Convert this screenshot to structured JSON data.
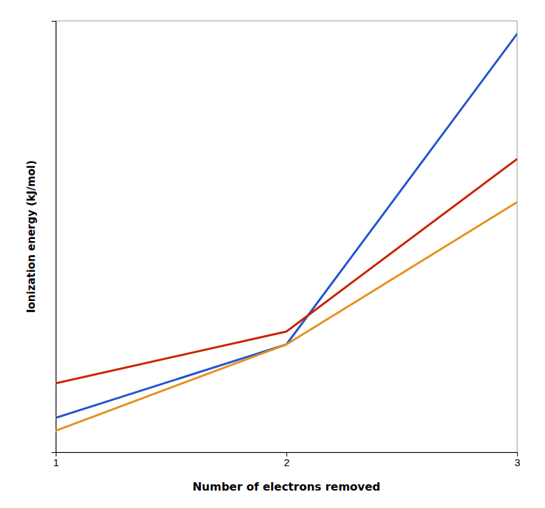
{
  "chart_data": {
    "type": "line",
    "xlabel": "Number of electrons removed",
    "ylabel": "Ionization energy (kJ/mol)",
    "x": [
      1,
      2,
      3
    ],
    "xlim": [
      1,
      3
    ],
    "xticks": [
      1,
      2,
      3
    ],
    "ylim": [
      0,
      1
    ],
    "tick_labels": "x",
    "series": [
      {
        "color": "#2255cc",
        "values": [
          0.08,
          0.25,
          0.97
        ]
      },
      {
        "color": "#cc2200",
        "values": [
          0.16,
          0.28,
          0.68
        ]
      },
      {
        "color": "#e89020",
        "values": [
          0.05,
          0.25,
          0.58
        ]
      }
    ]
  }
}
